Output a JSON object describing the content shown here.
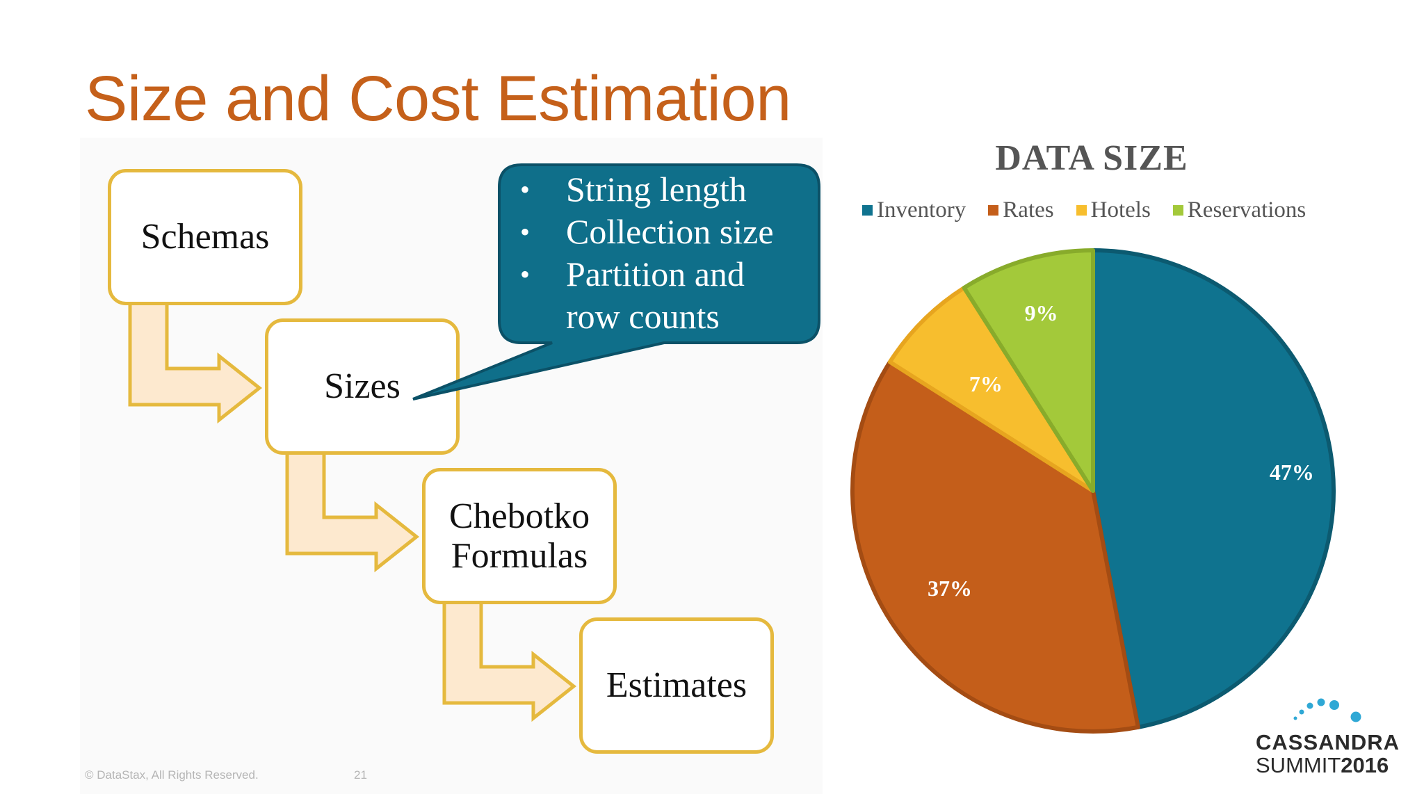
{
  "slide": {
    "title": "Size and Cost Estimation",
    "footer_copyright": "© DataStax, All Rights Reserved.",
    "page_number": "21"
  },
  "flow": {
    "steps": [
      {
        "label": "Schemas"
      },
      {
        "label": "Sizes"
      },
      {
        "label": "Chebotko\nFormulas"
      },
      {
        "label": "Estimates"
      }
    ],
    "callout_items": [
      "String length",
      "Collection size",
      "Partition and",
      "row counts"
    ],
    "colors": {
      "box_border": "#e5b93e",
      "arrow_fill": "#fde9cf",
      "callout_fill": "#0f6f8a"
    }
  },
  "chart_data": {
    "type": "pie",
    "title": "DATA SIZE",
    "legend_position": "top",
    "categories": [
      "Inventory",
      "Rates",
      "Hotels",
      "Reservations"
    ],
    "values": [
      47,
      37,
      7,
      9
    ],
    "data_labels": [
      "47%",
      "37%",
      "7%",
      "9%"
    ],
    "colors": [
      "#0f738f",
      "#c45e1a",
      "#f7be2e",
      "#a3c93a"
    ],
    "start_angle_deg": 0,
    "direction": "clockwise"
  },
  "logo": {
    "line1": "CASSANDRA",
    "line2_light": "SUMMIT",
    "line2_bold": "2016",
    "dot_color": "#2fa8d5"
  }
}
